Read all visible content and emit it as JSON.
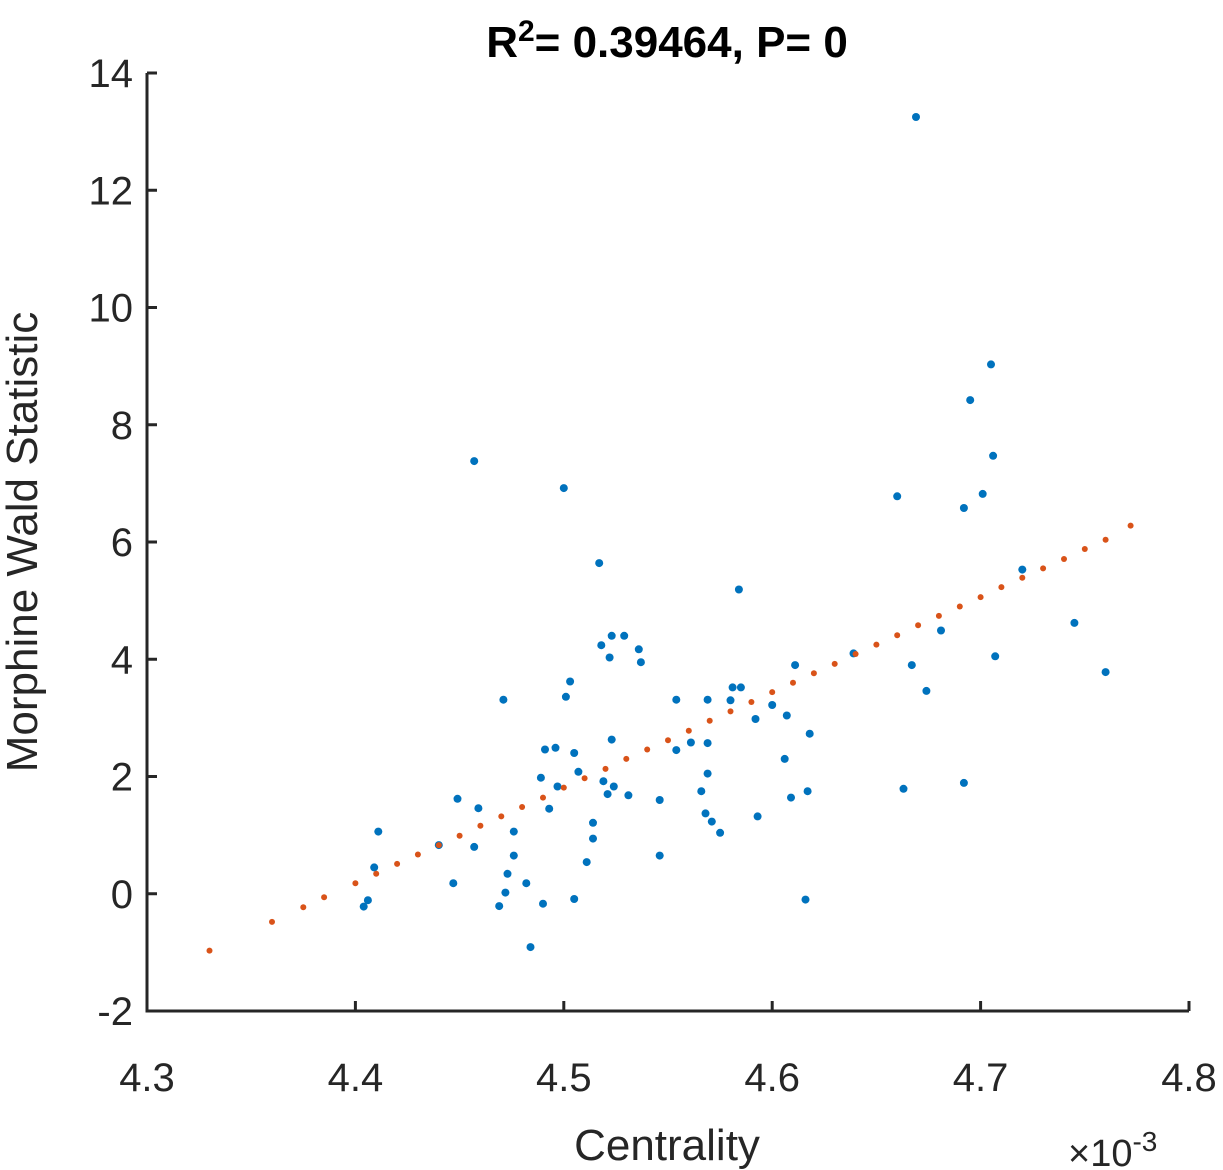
{
  "chart_data": {
    "type": "scatter",
    "title_main": "R",
    "title_sup": "2",
    "title_rest": "= 0.39464, P= 0",
    "xlabel": "Centrality",
    "ylabel": "Morphine Wald Statistic",
    "x_exponent_base": "×10",
    "x_exponent_power": "-3",
    "xlim": [
      4.3,
      4.8
    ],
    "ylim": [
      -2,
      14
    ],
    "xticks": [
      4.3,
      4.4,
      4.5,
      4.6,
      4.7,
      4.8
    ],
    "xtick_labels": [
      "4.3",
      "4.4",
      "4.5",
      "4.6",
      "4.7",
      "4.8"
    ],
    "yticks": [
      -2,
      0,
      2,
      4,
      6,
      8,
      10,
      12,
      14
    ],
    "ytick_labels": [
      "-2",
      "0",
      "2",
      "4",
      "6",
      "8",
      "10",
      "12",
      "14"
    ],
    "series": [
      {
        "color": "#0072BD",
        "points": [
          [
            4.669,
            13.25
          ],
          [
            4.705,
            9.03
          ],
          [
            4.695,
            8.42
          ],
          [
            4.706,
            7.47
          ],
          [
            4.457,
            7.38
          ],
          [
            4.5,
            6.92
          ],
          [
            4.701,
            6.82
          ],
          [
            4.66,
            6.78
          ],
          [
            4.692,
            6.58
          ],
          [
            4.517,
            5.64
          ],
          [
            4.72,
            5.53
          ],
          [
            4.584,
            5.19
          ],
          [
            4.745,
            4.62
          ],
          [
            4.681,
            4.49
          ],
          [
            4.523,
            4.4
          ],
          [
            4.529,
            4.4
          ],
          [
            4.518,
            4.24
          ],
          [
            4.536,
            4.17
          ],
          [
            4.639,
            4.1
          ],
          [
            4.707,
            4.05
          ],
          [
            4.522,
            4.03
          ],
          [
            4.537,
            3.95
          ],
          [
            4.611,
            3.9
          ],
          [
            4.667,
            3.9
          ],
          [
            4.76,
            3.78
          ],
          [
            4.503,
            3.62
          ],
          [
            4.581,
            3.52
          ],
          [
            4.585,
            3.52
          ],
          [
            4.674,
            3.46
          ],
          [
            4.501,
            3.36
          ],
          [
            4.471,
            3.31
          ],
          [
            4.554,
            3.31
          ],
          [
            4.569,
            3.31
          ],
          [
            4.58,
            3.3
          ],
          [
            4.6,
            3.22
          ],
          [
            4.607,
            3.04
          ],
          [
            4.592,
            2.98
          ],
          [
            4.618,
            2.73
          ],
          [
            4.523,
            2.63
          ],
          [
            4.561,
            2.58
          ],
          [
            4.569,
            2.57
          ],
          [
            4.496,
            2.49
          ],
          [
            4.491,
            2.46
          ],
          [
            4.554,
            2.45
          ],
          [
            4.505,
            2.4
          ],
          [
            4.606,
            2.3
          ],
          [
            4.507,
            2.08
          ],
          [
            4.569,
            2.05
          ],
          [
            4.489,
            1.98
          ],
          [
            4.519,
            1.92
          ],
          [
            4.692,
            1.89
          ],
          [
            4.663,
            1.79
          ],
          [
            4.617,
            1.75
          ],
          [
            4.497,
            1.83
          ],
          [
            4.524,
            1.83
          ],
          [
            4.566,
            1.75
          ],
          [
            4.521,
            1.7
          ],
          [
            4.531,
            1.68
          ],
          [
            4.609,
            1.64
          ],
          [
            4.449,
            1.62
          ],
          [
            4.546,
            1.6
          ],
          [
            4.459,
            1.46
          ],
          [
            4.493,
            1.45
          ],
          [
            4.568,
            1.37
          ],
          [
            4.593,
            1.32
          ],
          [
            4.571,
            1.23
          ],
          [
            4.514,
            1.21
          ],
          [
            4.575,
            1.04
          ],
          [
            4.411,
            1.06
          ],
          [
            4.476,
            1.06
          ],
          [
            4.514,
            0.94
          ],
          [
            4.44,
            0.83
          ],
          [
            4.457,
            0.8
          ],
          [
            4.546,
            0.65
          ],
          [
            4.476,
            0.65
          ],
          [
            4.511,
            0.54
          ],
          [
            4.409,
            0.45
          ],
          [
            4.473,
            0.34
          ],
          [
            4.482,
            0.18
          ],
          [
            4.447,
            0.18
          ],
          [
            4.472,
            0.02
          ],
          [
            4.406,
            -0.11
          ],
          [
            4.505,
            -0.09
          ],
          [
            4.616,
            -0.1
          ],
          [
            4.49,
            -0.17
          ],
          [
            4.404,
            -0.22
          ],
          [
            4.469,
            -0.21
          ],
          [
            4.484,
            -0.91
          ]
        ]
      },
      {
        "color": "#D95319",
        "points": [
          [
            4.33,
            -0.97
          ],
          [
            4.36,
            -0.48
          ],
          [
            4.375,
            -0.23
          ],
          [
            4.385,
            -0.06
          ],
          [
            4.4,
            0.18
          ],
          [
            4.41,
            0.34
          ],
          [
            4.42,
            0.51
          ],
          [
            4.43,
            0.67
          ],
          [
            4.44,
            0.83
          ],
          [
            4.45,
            0.99
          ],
          [
            4.46,
            1.16
          ],
          [
            4.47,
            1.32
          ],
          [
            4.48,
            1.48
          ],
          [
            4.49,
            1.64
          ],
          [
            4.5,
            1.81
          ],
          [
            4.51,
            1.97
          ],
          [
            4.52,
            2.13
          ],
          [
            4.53,
            2.3
          ],
          [
            4.54,
            2.46
          ],
          [
            4.55,
            2.62
          ],
          [
            4.56,
            2.78
          ],
          [
            4.57,
            2.95
          ],
          [
            4.58,
            3.11
          ],
          [
            4.59,
            3.27
          ],
          [
            4.6,
            3.44
          ],
          [
            4.61,
            3.6
          ],
          [
            4.62,
            3.76
          ],
          [
            4.63,
            3.92
          ],
          [
            4.64,
            4.09
          ],
          [
            4.65,
            4.25
          ],
          [
            4.66,
            4.41
          ],
          [
            4.67,
            4.58
          ],
          [
            4.68,
            4.74
          ],
          [
            4.69,
            4.9
          ],
          [
            4.7,
            5.06
          ],
          [
            4.71,
            5.23
          ],
          [
            4.72,
            5.39
          ],
          [
            4.73,
            5.55
          ],
          [
            4.74,
            5.71
          ],
          [
            4.75,
            5.88
          ],
          [
            4.76,
            6.04
          ],
          [
            4.772,
            6.28
          ]
        ]
      }
    ]
  }
}
